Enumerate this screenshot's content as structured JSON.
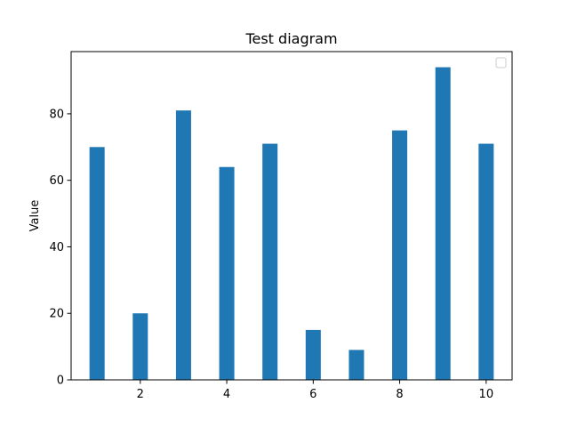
{
  "chart_data": {
    "type": "bar",
    "title": "Test diagram",
    "xlabel": "",
    "ylabel": "Value",
    "x": [
      1,
      2,
      3,
      4,
      5,
      6,
      7,
      8,
      9,
      10
    ],
    "values": [
      70,
      20,
      81,
      64,
      71,
      15,
      9,
      75,
      94,
      71
    ],
    "xlim": [
      0.4,
      10.6
    ],
    "ylim": [
      0,
      98.7
    ],
    "xticks": [
      2,
      4,
      6,
      8,
      10
    ],
    "yticks": [
      0,
      20,
      40,
      60,
      80
    ],
    "bar_width": 0.35,
    "grid": false,
    "legend": "top-right (empty)",
    "bar_color": "#1f77b4"
  }
}
